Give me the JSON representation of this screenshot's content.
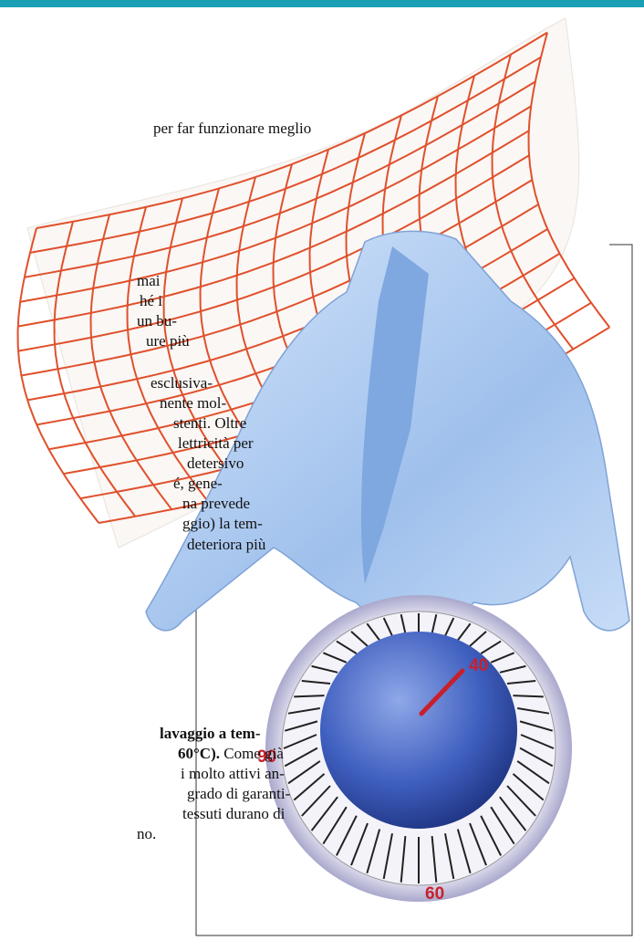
{
  "intro_fragment": "per far funzionare meglio",
  "column_fragments": [
    "mai",
    "hé i",
    "un bu-",
    "ure più",
    "esclusiva-",
    "nente mol-",
    "stenti. Oltre",
    "lettricità per",
    "detersivo",
    "é, gene-",
    "na prevede",
    "ggio) la tem-",
    "deteriora più"
  ],
  "bottom_lines": [
    [
      {
        "text": "lavaggio a tem-",
        "bold": true
      }
    ],
    [
      {
        "text": "60°C).",
        "bold": true
      },
      {
        "text": "Come già",
        "bold": false
      }
    ],
    [
      {
        "text": "i molto attivi an-",
        "bold": false
      }
    ],
    [
      {
        "text": "grado di garanti-",
        "bold": false
      }
    ],
    [
      {
        "text": "tessuti durano di",
        "bold": false
      }
    ],
    [
      {
        "text": "no.",
        "bold": false
      }
    ]
  ],
  "dial": {
    "labels": [
      "40",
      "90",
      "60"
    ]
  }
}
